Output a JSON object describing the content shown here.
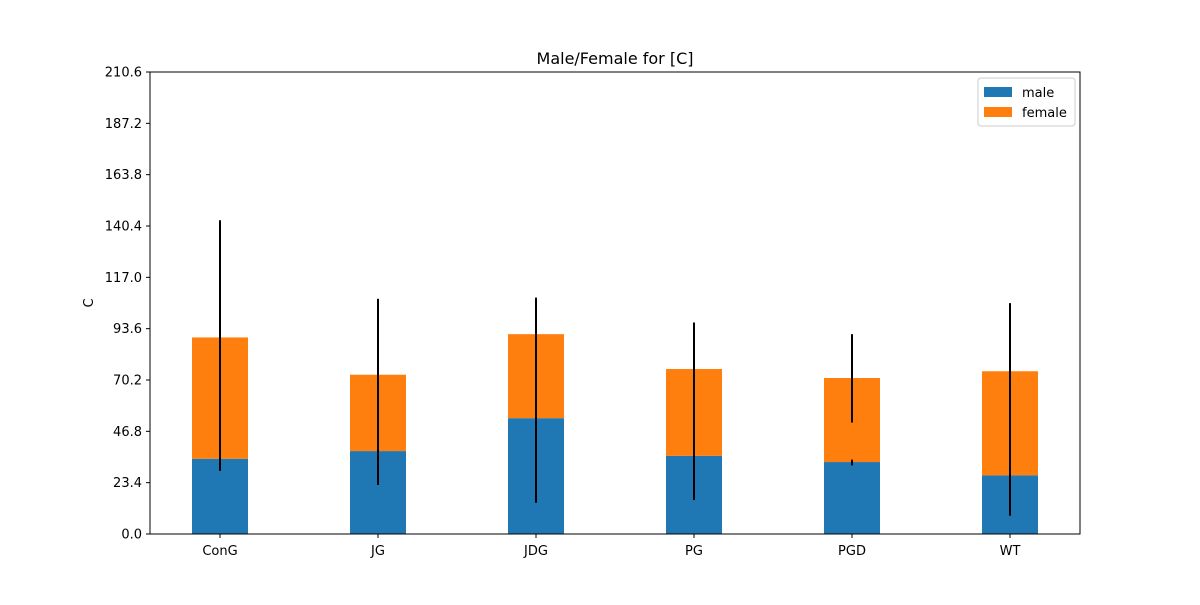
{
  "chart_data": {
    "type": "bar",
    "stacked": true,
    "title": "Male/Female for [C]",
    "xlabel": "",
    "ylabel": "C",
    "ylim": [
      0,
      210.6
    ],
    "yticks": [
      "0.0",
      "23.4",
      "46.8",
      "70.2",
      "93.6",
      "117.0",
      "140.4",
      "163.8",
      "187.2",
      "210.6"
    ],
    "categories": [
      "ConG",
      "JG",
      "JDG",
      "PG",
      "PGD",
      "WT"
    ],
    "series": [
      {
        "name": "male",
        "color": "#1f77b4",
        "values": [
          34.3,
          37.8,
          52.8,
          35.6,
          32.8,
          26.7
        ]
      },
      {
        "name": "female",
        "color": "#ff7f0e",
        "values": [
          55.3,
          34.8,
          38.3,
          39.6,
          38.3,
          47.5
        ]
      }
    ],
    "error_bars": [
      {
        "male": [
          29.5,
          141.1
        ],
        "female": [
          28.8,
          143.0
        ]
      },
      {
        "male": [
          22.4,
          107.2
        ],
        "female": [
          22.4,
          107.2
        ]
      },
      {
        "male": [
          14.3,
          107.7
        ],
        "female": [
          14.3,
          107.7
        ]
      },
      {
        "male": [
          15.5,
          96.4
        ],
        "female": [
          15.5,
          96.4
        ]
      },
      {
        "male": [
          31.3,
          33.9
        ],
        "female": [
          50.8,
          91.1
        ]
      },
      {
        "male": [
          8.4,
          105.2
        ],
        "female": [
          8.4,
          105.2
        ]
      }
    ],
    "legend": {
      "position": "top-right",
      "entries": [
        "male",
        "female"
      ]
    },
    "grid": false
  }
}
